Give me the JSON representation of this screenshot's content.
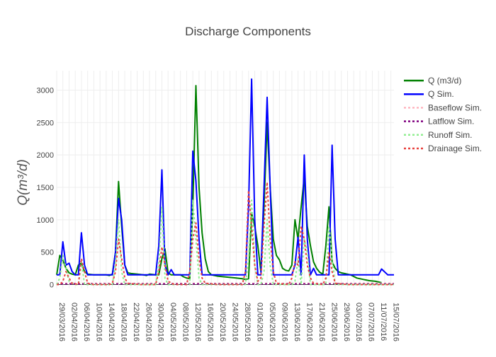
{
  "chart_data": {
    "type": "line",
    "title": "Discharge Components",
    "ylabel": "Q(m³/d)",
    "xlabel": "",
    "ylim": [
      -60,
      3300
    ],
    "xlim": [
      "2016-03-29",
      "2016-07-16"
    ],
    "yticks": [
      0,
      500,
      1000,
      1500,
      2000,
      2500,
      3000
    ],
    "xticks": [
      "29/03/2016",
      "02/04/2016",
      "06/04/2016",
      "10/04/2016",
      "14/04/2016",
      "18/04/2016",
      "22/04/2016",
      "26/04/2016",
      "30/04/2016",
      "04/05/2016",
      "08/05/2016",
      "12/05/2016",
      "16/05/2016",
      "20/05/2016",
      "24/05/2016",
      "28/05/2016",
      "01/06/2016",
      "05/06/2016",
      "09/06/2016",
      "13/06/2016",
      "17/06/2016",
      "21/06/2016",
      "25/06/2016",
      "29/06/2016",
      "03/07/2016",
      "07/07/2016",
      "11/07/2016",
      "15/07/2016"
    ],
    "grid": true,
    "legend_position": "top-right",
    "series": [
      {
        "name": "Q (m3/d)",
        "color": "#008000",
        "dash": "solid",
        "x": [
          "2016-03-29",
          "2016-03-30",
          "2016-03-31",
          "2016-04-01",
          "2016-04-02",
          "2016-04-03",
          "2016-04-04",
          "2016-04-05",
          "2016-04-06",
          "2016-04-07",
          "2016-04-08",
          "2016-04-10",
          "2016-04-12",
          "2016-04-14",
          "2016-04-15",
          "2016-04-16",
          "2016-04-17",
          "2016-04-18",
          "2016-04-19",
          "2016-04-20",
          "2016-04-21",
          "2016-04-22",
          "2016-04-24",
          "2016-04-26",
          "2016-04-27",
          "2016-04-28",
          "2016-04-30",
          "2016-05-01",
          "2016-05-02",
          "2016-05-03",
          "2016-05-04",
          "2016-05-05",
          "2016-05-06",
          "2016-05-08",
          "2016-05-09",
          "2016-05-10",
          "2016-05-11",
          "2016-05-12",
          "2016-05-13",
          "2016-05-14",
          "2016-05-15",
          "2016-05-16",
          "2016-05-17",
          "2016-05-18",
          "2016-05-20",
          "2016-05-22",
          "2016-05-24",
          "2016-05-26",
          "2016-05-28",
          "2016-05-29",
          "2016-05-30",
          "2016-05-31",
          "2016-06-01",
          "2016-06-02",
          "2016-06-03",
          "2016-06-04",
          "2016-06-05",
          "2016-06-06",
          "2016-06-07",
          "2016-06-08",
          "2016-06-09",
          "2016-06-10",
          "2016-06-11",
          "2016-06-12",
          "2016-06-13",
          "2016-06-14",
          "2016-06-15",
          "2016-06-16",
          "2016-06-17",
          "2016-06-18",
          "2016-06-19",
          "2016-06-20",
          "2016-06-21",
          "2016-06-22",
          "2016-06-23",
          "2016-06-24",
          "2016-06-25",
          "2016-06-26",
          "2016-06-27",
          "2016-06-28",
          "2016-06-29",
          "2016-06-30",
          "2016-07-01",
          "2016-07-02",
          "2016-07-04",
          "2016-07-06",
          "2016-07-08",
          "2016-07-10",
          "2016-07-11",
          "2016-07-12"
        ],
        "y": [
          150,
          450,
          380,
          250,
          180,
          160,
          150,
          300,
          330,
          200,
          160,
          150,
          150,
          150,
          140,
          160,
          500,
          1590,
          900,
          300,
          180,
          170,
          160,
          150,
          140,
          160,
          150,
          150,
          400,
          550,
          180,
          150,
          150,
          150,
          120,
          100,
          90,
          1200,
          3070,
          1500,
          800,
          400,
          200,
          150,
          130,
          120,
          110,
          100,
          90,
          80,
          90,
          1100,
          900,
          600,
          200,
          1200,
          2500,
          1500,
          700,
          450,
          380,
          250,
          220,
          210,
          300,
          1000,
          700,
          1200,
          1650,
          900,
          600,
          350,
          250,
          190,
          160,
          600,
          1200,
          350,
          250,
          200,
          180,
          170,
          160,
          150,
          100,
          80,
          60,
          50,
          40,
          30
        ]
      },
      {
        "name": "Q Sim.",
        "color": "#0000ff",
        "dash": "solid",
        "x": [
          "2016-03-29",
          "2016-03-30",
          "2016-03-31",
          "2016-04-01",
          "2016-04-02",
          "2016-04-03",
          "2016-04-04",
          "2016-04-05",
          "2016-04-06",
          "2016-04-07",
          "2016-04-08",
          "2016-04-09",
          "2016-04-11",
          "2016-04-13",
          "2016-04-15",
          "2016-04-16",
          "2016-04-17",
          "2016-04-18",
          "2016-04-19",
          "2016-04-20",
          "2016-04-21",
          "2016-04-23",
          "2016-04-25",
          "2016-04-27",
          "2016-04-29",
          "2016-04-30",
          "2016-05-01",
          "2016-05-02",
          "2016-05-03",
          "2016-05-04",
          "2016-05-05",
          "2016-05-06",
          "2016-05-08",
          "2016-05-10",
          "2016-05-11",
          "2016-05-12",
          "2016-05-13",
          "2016-05-14",
          "2016-05-15",
          "2016-05-16",
          "2016-05-18",
          "2016-05-20",
          "2016-05-22",
          "2016-05-24",
          "2016-05-26",
          "2016-05-28",
          "2016-05-29",
          "2016-05-30",
          "2016-05-31",
          "2016-06-01",
          "2016-06-02",
          "2016-06-03",
          "2016-06-04",
          "2016-06-05",
          "2016-06-06",
          "2016-06-07",
          "2016-06-08",
          "2016-06-09",
          "2016-06-10",
          "2016-06-11",
          "2016-06-12",
          "2016-06-13",
          "2016-06-14",
          "2016-06-15",
          "2016-06-16",
          "2016-06-17",
          "2016-06-18",
          "2016-06-19",
          "2016-06-20",
          "2016-06-21",
          "2016-06-22",
          "2016-06-23",
          "2016-06-24",
          "2016-06-25",
          "2016-06-26",
          "2016-06-27",
          "2016-06-28",
          "2016-06-30",
          "2016-07-02",
          "2016-07-04",
          "2016-07-06",
          "2016-07-08",
          "2016-07-10",
          "2016-07-11",
          "2016-07-12",
          "2016-07-14",
          "2016-07-16"
        ],
        "y": [
          150,
          150,
          660,
          300,
          330,
          200,
          150,
          150,
          800,
          300,
          150,
          150,
          150,
          150,
          150,
          150,
          500,
          1330,
          1000,
          300,
          150,
          150,
          150,
          150,
          150,
          150,
          600,
          1770,
          300,
          150,
          230,
          150,
          150,
          150,
          150,
          2060,
          1600,
          700,
          150,
          150,
          150,
          150,
          150,
          150,
          150,
          150,
          150,
          1200,
          3170,
          1000,
          150,
          150,
          1500,
          2890,
          1500,
          150,
          150,
          150,
          150,
          150,
          150,
          150,
          300,
          730,
          150,
          2000,
          700,
          150,
          250,
          150,
          150,
          150,
          150,
          150,
          2150,
          700,
          150,
          150,
          150,
          150,
          150,
          150,
          150,
          150,
          240,
          150,
          150
        ]
      },
      {
        "name": "Baseflow Sim.",
        "color": "#ffb6c1",
        "dash": "dot",
        "x": [
          "2016-03-29",
          "2016-04-05",
          "2016-04-15",
          "2016-04-25",
          "2016-05-05",
          "2016-05-15",
          "2016-05-25",
          "2016-06-05",
          "2016-06-15",
          "2016-06-25",
          "2016-07-05",
          "2016-07-16"
        ],
        "y": [
          20,
          20,
          20,
          20,
          20,
          20,
          20,
          20,
          20,
          20,
          20,
          20
        ]
      },
      {
        "name": "Latflow Sim.",
        "color": "#800080",
        "dash": "dot",
        "x": [
          "2016-03-29",
          "2016-04-05",
          "2016-04-15",
          "2016-04-25",
          "2016-05-05",
          "2016-05-15",
          "2016-05-25",
          "2016-06-05",
          "2016-06-15",
          "2016-06-25",
          "2016-07-05",
          "2016-07-16"
        ],
        "y": [
          10,
          10,
          10,
          10,
          10,
          10,
          10,
          10,
          10,
          10,
          10,
          10
        ]
      },
      {
        "name": "Runoff Sim.",
        "color": "#90ee90",
        "dash": "dot",
        "x": [
          "2016-03-29",
          "2016-03-30",
          "2016-03-31",
          "2016-04-02",
          "2016-04-04",
          "2016-04-05",
          "2016-04-06",
          "2016-04-07",
          "2016-04-09",
          "2016-04-14",
          "2016-04-15",
          "2016-04-16",
          "2016-04-17",
          "2016-04-18",
          "2016-04-19",
          "2016-04-20",
          "2016-04-25",
          "2016-04-30",
          "2016-05-01",
          "2016-05-02",
          "2016-05-03",
          "2016-05-04",
          "2016-05-09",
          "2016-05-10",
          "2016-05-11",
          "2016-05-12",
          "2016-05-13",
          "2016-05-14",
          "2016-05-15",
          "2016-05-20",
          "2016-05-28",
          "2016-05-29",
          "2016-05-30",
          "2016-05-31",
          "2016-06-01",
          "2016-06-02",
          "2016-06-03",
          "2016-06-04",
          "2016-06-05",
          "2016-06-06",
          "2016-06-07",
          "2016-06-12",
          "2016-06-13",
          "2016-06-14",
          "2016-06-15",
          "2016-06-16",
          "2016-06-17",
          "2016-06-18",
          "2016-06-19",
          "2016-06-22",
          "2016-06-23",
          "2016-06-24",
          "2016-06-25",
          "2016-06-26",
          "2016-06-27",
          "2016-07-05",
          "2016-07-16"
        ],
        "y": [
          0,
          100,
          450,
          50,
          0,
          0,
          350,
          0,
          0,
          0,
          0,
          0,
          300,
          1000,
          200,
          0,
          0,
          0,
          300,
          1200,
          100,
          0,
          0,
          0,
          0,
          1300,
          700,
          100,
          0,
          0,
          0,
          0,
          400,
          1300,
          300,
          0,
          0,
          200,
          1000,
          300,
          0,
          0,
          0,
          50,
          400,
          0,
          700,
          500,
          0,
          0,
          0,
          0,
          900,
          400,
          0,
          0,
          0
        ]
      },
      {
        "name": "Drainage Sim.",
        "color": "#e8423f",
        "dash": "dot",
        "x": [
          "2016-03-29",
          "2016-03-30",
          "2016-03-31",
          "2016-04-01",
          "2016-04-02",
          "2016-04-03",
          "2016-04-05",
          "2016-04-06",
          "2016-04-07",
          "2016-04-08",
          "2016-04-10",
          "2016-04-15",
          "2016-04-16",
          "2016-04-17",
          "2016-04-18",
          "2016-04-19",
          "2016-04-20",
          "2016-04-21",
          "2016-04-25",
          "2016-04-30",
          "2016-05-01",
          "2016-05-02",
          "2016-05-03",
          "2016-05-04",
          "2016-05-06",
          "2016-05-10",
          "2016-05-11",
          "2016-05-12",
          "2016-05-13",
          "2016-05-14",
          "2016-05-15",
          "2016-05-16",
          "2016-05-20",
          "2016-05-28",
          "2016-05-29",
          "2016-05-30",
          "2016-05-31",
          "2016-06-01",
          "2016-06-02",
          "2016-06-03",
          "2016-06-04",
          "2016-06-05",
          "2016-06-06",
          "2016-06-07",
          "2016-06-08",
          "2016-06-12",
          "2016-06-13",
          "2016-06-14",
          "2016-06-15",
          "2016-06-16",
          "2016-06-17",
          "2016-06-18",
          "2016-06-19",
          "2016-06-20",
          "2016-06-23",
          "2016-06-24",
          "2016-06-25",
          "2016-06-26",
          "2016-06-27",
          "2016-07-01",
          "2016-07-16"
        ],
        "y": [
          0,
          0,
          50,
          200,
          100,
          20,
          0,
          400,
          200,
          20,
          0,
          0,
          20,
          200,
          700,
          400,
          100,
          20,
          0,
          0,
          200,
          580,
          300,
          50,
          0,
          0,
          200,
          700,
          950,
          400,
          100,
          20,
          0,
          0,
          200,
          1450,
          900,
          300,
          50,
          100,
          900,
          1580,
          700,
          200,
          20,
          0,
          100,
          350,
          300,
          900,
          700,
          300,
          100,
          20,
          0,
          100,
          500,
          200,
          20,
          0,
          0
        ]
      }
    ]
  }
}
